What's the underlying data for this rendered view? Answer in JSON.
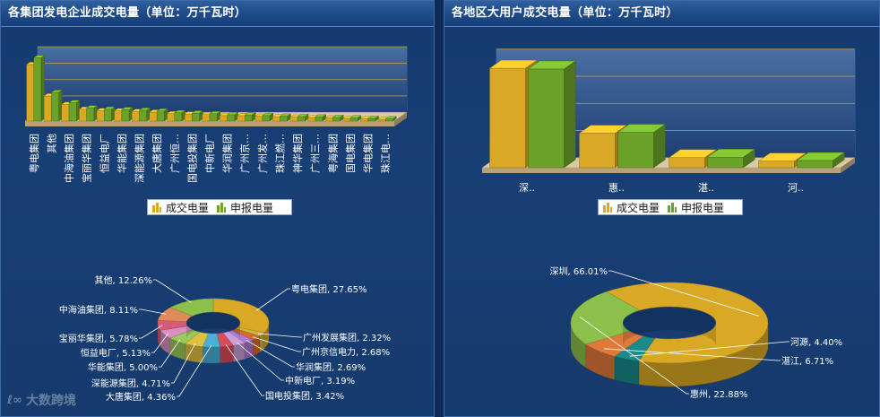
{
  "left_panel": {
    "title": "各集团发电企业成交电量（单位：万千瓦时）",
    "legend": [
      "成交电量",
      "申报电量"
    ]
  },
  "right_panel": {
    "title": "各地区大用户成交电量（单位：万千瓦时）",
    "legend": [
      "成交电量",
      "申报电量"
    ]
  },
  "watermark": "大数跨境",
  "colors": {
    "series1": "#d9a825",
    "series2": "#6aa22a",
    "background": "#153a6d",
    "header": "#1d4a87"
  },
  "chart_data": [
    {
      "type": "bar",
      "title": "各集团发电企业成交电量（单位：万千瓦时）",
      "categories": [
        "粤电集团",
        "其他",
        "中海油集团",
        "宝丽华集团",
        "恒益电厂",
        "华能集团",
        "深能源集团",
        "大唐集团",
        "广州恒…",
        "国电投集团",
        "中新电厂",
        "华润集团",
        "广州京…",
        "广州发…",
        "珠江燃…",
        "神华集团",
        "广州三…",
        "粤海集团",
        "国电集团",
        "华电集团",
        "珠江电…"
      ],
      "series": [
        {
          "name": "成交电量",
          "values": [
            27.65,
            12.26,
            8.11,
            5.78,
            5.13,
            5.0,
            4.71,
            4.36,
            3.6,
            3.42,
            3.19,
            2.69,
            2.68,
            2.32,
            2.1,
            1.9,
            1.7,
            1.5,
            1.3,
            1.1,
            0.9
          ]
        },
        {
          "name": "申报电量",
          "values": [
            31,
            14,
            9,
            6.5,
            5.8,
            5.6,
            5.3,
            4.9,
            4.1,
            3.9,
            3.6,
            3.1,
            3.0,
            2.7,
            2.4,
            2.2,
            2.0,
            1.8,
            1.6,
            1.3,
            1.1
          ]
        }
      ],
      "ylim": [
        0,
        32
      ],
      "grid": true,
      "legend_position": "bottom"
    },
    {
      "type": "bar",
      "title": "各地区大用户成交电量（单位：万千瓦时）",
      "categories": [
        "深..",
        "惠..",
        "湛..",
        "河.."
      ],
      "series": [
        {
          "name": "成交电量",
          "values": [
            66.01,
            22.88,
            6.71,
            4.4
          ]
        },
        {
          "name": "申报电量",
          "values": [
            65.5,
            23.5,
            7.0,
            4.8
          ]
        }
      ],
      "ylim": [
        0,
        72
      ],
      "grid": true,
      "legend_position": "bottom"
    },
    {
      "type": "pie",
      "style": "donut-3d",
      "slices": [
        {
          "label": "粤电集团, 27.65%",
          "value": 27.65,
          "color": "#d9a825"
        },
        {
          "label": "广州发展集团, 2.32%",
          "value": 2.32,
          "color": "#c8b840"
        },
        {
          "label": "广州京信电力, 2.68%",
          "value": 2.68,
          "color": "#d96a2a"
        },
        {
          "label": "华润集团, 2.69%",
          "value": 2.69,
          "color": "#b07ad0"
        },
        {
          "label": "中新电厂, 3.19%",
          "value": 3.19,
          "color": "#c8a0d8"
        },
        {
          "label": "国电投集团, 3.42%",
          "value": 3.42,
          "color": "#d94c5a"
        },
        {
          "label": "大唐集团, 4.36%",
          "value": 4.36,
          "color": "#4ab0d8"
        },
        {
          "label": "深能源集团, 4.71%",
          "value": 4.71,
          "color": "#e0c040"
        },
        {
          "label": "华能集团, 5.00%",
          "value": 5.0,
          "color": "#9aca5a"
        },
        {
          "label": "恒益电厂, 5.13%",
          "value": 5.13,
          "color": "#d890c0"
        },
        {
          "label": "宝丽华集团, 5.78%",
          "value": 5.78,
          "color": "#d85a7a"
        },
        {
          "label": "中海油集团, 8.11%",
          "value": 8.11,
          "color": "#e08a5a"
        },
        {
          "label": "其他, 12.26%",
          "value": 12.26,
          "color": "#8cc04a"
        }
      ]
    },
    {
      "type": "pie",
      "style": "donut-3d",
      "slices": [
        {
          "label": "深圳, 66.01%",
          "value": 66.01,
          "color": "#d9a825"
        },
        {
          "label": "河源, 4.40%",
          "value": 4.4,
          "color": "#1a8a8a"
        },
        {
          "label": "湛江, 6.71%",
          "value": 6.71,
          "color": "#e07a3a"
        },
        {
          "label": "惠州, 22.88%",
          "value": 22.88,
          "color": "#8cc04a"
        }
      ]
    }
  ]
}
